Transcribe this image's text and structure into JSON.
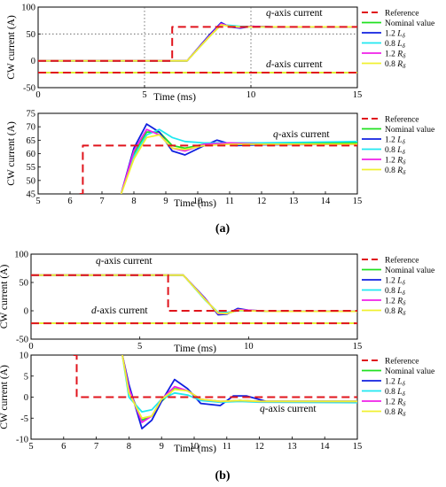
{
  "figure": {
    "sublabels": [
      "(a)",
      "(b)"
    ]
  },
  "style": {
    "colors": {
      "Reference": "#e0141c",
      "Nominal value": "#20e020",
      "1.2 Lδ": "#1020e0",
      "0.8 Lδ": "#20e8f0",
      "1.2 Rδ": "#f020e8",
      "0.8 Rδ": "#f0f030"
    }
  },
  "chart_data": [
    {
      "id": "a1",
      "type": "line",
      "ylabel": "CW current (A)",
      "xlabel": "Time (ms)",
      "xlim": [
        0,
        15
      ],
      "ylim": [
        -50,
        100
      ],
      "xticks": [
        0,
        5,
        10,
        15
      ],
      "yticks": [
        -50,
        0,
        50,
        100
      ],
      "grid": "dotted at x=5, x=10, y=50",
      "annotations": [
        "q-axis current",
        "d-axis current"
      ],
      "legend": [
        "Reference",
        "Nominal value",
        "1.2 Lδ",
        "0.8 Lδ",
        "1.2 Rδ",
        "0.8 Rδ"
      ],
      "series": [
        {
          "name": "Reference",
          "x": [
            0,
            6.3,
            6.3,
            15
          ],
          "y": [
            0,
            0,
            63,
            63
          ]
        },
        {
          "name": "Reference",
          "x": [
            0,
            15
          ],
          "y": [
            -22,
            -22
          ]
        },
        {
          "name": "Nominal value",
          "x": [
            0,
            6.4,
            7.0,
            8.0,
            8.6,
            9.0,
            9.5,
            10.0,
            11,
            15
          ],
          "y": [
            0,
            0,
            0,
            44,
            68,
            65,
            63,
            64,
            63,
            63
          ]
        },
        {
          "name": "1.2 Lδ",
          "x": [
            0,
            6.4,
            7.0,
            8.0,
            8.6,
            9.0,
            9.5,
            10.0,
            11,
            15
          ],
          "y": [
            0,
            0,
            0,
            46,
            71,
            63,
            61,
            64,
            63,
            63
          ]
        },
        {
          "name": "0.8 Lδ",
          "x": [
            0,
            6.4,
            7.0,
            8.0,
            8.6,
            9.0,
            9.5,
            10.0,
            11,
            15
          ],
          "y": [
            0,
            0,
            0,
            43,
            67,
            66,
            64,
            63,
            63,
            63
          ]
        },
        {
          "name": "1.2 Rδ",
          "x": [
            0,
            6.4,
            7.0,
            8.0,
            8.6,
            9.0,
            9.5,
            10.0,
            11,
            15
          ],
          "y": [
            0,
            0,
            0,
            44,
            69,
            64,
            62,
            64,
            63,
            63
          ]
        },
        {
          "name": "0.8 Rδ",
          "x": [
            0,
            6.4,
            7.0,
            8.0,
            8.6,
            9.0,
            9.5,
            10.0,
            11,
            15
          ],
          "y": [
            0,
            0,
            0,
            43,
            67,
            64,
            63,
            63,
            63,
            63
          ]
        },
        {
          "name": "Nominal value",
          "x": [
            0,
            15
          ],
          "y": [
            -22,
            -22
          ]
        },
        {
          "name": "0.8 Rδ",
          "x": [
            0,
            15
          ],
          "y": [
            -22,
            -22
          ]
        }
      ]
    },
    {
      "id": "a2",
      "type": "line",
      "ylabel": "CW current (A)",
      "xlabel": "Time (ms)",
      "xlim": [
        5,
        15
      ],
      "ylim": [
        45,
        75
      ],
      "xticks": [
        5,
        6,
        7,
        8,
        9,
        10,
        11,
        12,
        13,
        14,
        15
      ],
      "yticks": [
        45,
        50,
        55,
        60,
        65,
        70,
        75
      ],
      "annotations": [
        "q-axis current"
      ],
      "legend": [
        "Reference",
        "Nominal value",
        "1.2 Lδ",
        "0.8 Lδ",
        "1.2 Rδ",
        "0.8 Rδ"
      ],
      "series": [
        {
          "name": "Reference",
          "x": [
            6.3,
            6.3,
            6.4,
            6.4,
            15
          ],
          "y": [
            45,
            45,
            45,
            63,
            63
          ]
        },
        {
          "name": "Nominal value",
          "x": [
            7.6,
            8.0,
            8.4,
            8.8,
            9.2,
            9.6,
            10.2,
            11,
            12,
            15
          ],
          "y": [
            45,
            60,
            68,
            68,
            63,
            62,
            63.5,
            64,
            64,
            64
          ]
        },
        {
          "name": "1.2 Lδ",
          "x": [
            7.6,
            8.0,
            8.4,
            8.8,
            9.2,
            9.6,
            10.2,
            10.6,
            11.2,
            12,
            15
          ],
          "y": [
            45,
            62,
            71,
            68,
            61,
            59.5,
            63,
            65,
            63,
            63.3,
            63.5
          ]
        },
        {
          "name": "0.8 Lδ",
          "x": [
            7.6,
            8.0,
            8.4,
            8.8,
            9.2,
            9.6,
            10.2,
            11,
            12,
            15
          ],
          "y": [
            45,
            59,
            67,
            69,
            66,
            64.5,
            64,
            64,
            64,
            64.5
          ]
        },
        {
          "name": "1.2 Rδ",
          "x": [
            7.6,
            8.0,
            8.4,
            8.8,
            9.2,
            9.6,
            10.2,
            11,
            12,
            15
          ],
          "y": [
            45,
            61,
            69,
            67,
            62,
            61,
            63.5,
            64,
            63.5,
            63.5
          ]
        },
        {
          "name": "0.8 Rδ",
          "x": [
            7.6,
            8.0,
            8.4,
            8.8,
            9.2,
            9.6,
            10.2,
            11,
            12,
            15
          ],
          "y": [
            45,
            58,
            66,
            67,
            62,
            61.5,
            63,
            63.5,
            63.5,
            63.5
          ]
        }
      ]
    },
    {
      "id": "b1",
      "type": "line",
      "ylabel": "CW current (A)",
      "xlabel": "Time (ms)",
      "xlim": [
        0,
        15
      ],
      "ylim": [
        -50,
        100
      ],
      "xticks": [
        0,
        5,
        10,
        15
      ],
      "yticks": [
        -50,
        0,
        50,
        100
      ],
      "annotations": [
        "q-axis current",
        "d-axis current"
      ],
      "legend": [
        "Reference",
        "Nominal value",
        "1.2 Lδ",
        "0.8 Lδ",
        "1.2 Rδ",
        "0.8 Rδ"
      ],
      "series": [
        {
          "name": "Reference",
          "x": [
            0,
            6.3,
            6.3,
            15
          ],
          "y": [
            63,
            63,
            0,
            0
          ]
        },
        {
          "name": "Reference",
          "x": [
            0,
            15
          ],
          "y": [
            -22,
            -22
          ]
        },
        {
          "name": "Nominal value",
          "x": [
            0,
            6.4,
            7.0,
            8.0,
            8.6,
            9.0,
            9.5,
            10.0,
            11,
            15
          ],
          "y": [
            63,
            63,
            63,
            20,
            -4,
            -5,
            1,
            1,
            -1,
            -1
          ]
        },
        {
          "name": "1.2 Lδ",
          "x": [
            0,
            6.4,
            7.0,
            8.0,
            8.6,
            9.0,
            9.5,
            10.0,
            11,
            15
          ],
          "y": [
            63,
            63,
            63,
            22,
            -7,
            -6,
            4,
            1,
            -1,
            -1
          ]
        },
        {
          "name": "0.8 Lδ",
          "x": [
            0,
            6.4,
            7.0,
            8.0,
            8.6,
            9.0,
            9.5,
            10.0,
            11,
            15
          ],
          "y": [
            63,
            63,
            63,
            19,
            -3,
            -3,
            0,
            0,
            -1,
            -1
          ]
        },
        {
          "name": "1.2 Rδ",
          "x": [
            0,
            6.4,
            7.0,
            8.0,
            8.6,
            9.0,
            9.5,
            10.0,
            11,
            15
          ],
          "y": [
            63,
            63,
            63,
            21,
            -5,
            -5,
            2,
            1,
            -1,
            -1
          ]
        },
        {
          "name": "0.8 Rδ",
          "x": [
            0,
            6.4,
            7.0,
            8.0,
            8.6,
            9.0,
            9.5,
            10.0,
            11,
            15
          ],
          "y": [
            63,
            63,
            63,
            20,
            -4,
            -5,
            1,
            0,
            -1,
            -1
          ]
        },
        {
          "name": "Nominal value",
          "x": [
            0,
            15
          ],
          "y": [
            -22,
            -22
          ]
        },
        {
          "name": "0.8 Rδ",
          "x": [
            0,
            15
          ],
          "y": [
            -22,
            -22
          ]
        }
      ]
    },
    {
      "id": "b2",
      "type": "line",
      "ylabel": "CW current (A)",
      "xlabel": "Time (ms)",
      "xlim": [
        5,
        15
      ],
      "ylim": [
        -10,
        10
      ],
      "xticks": [
        5,
        6,
        7,
        8,
        9,
        10,
        11,
        12,
        13,
        14,
        15
      ],
      "yticks": [
        -10,
        -5,
        0,
        5,
        10
      ],
      "annotations": [
        "q-axis current"
      ],
      "legend": [
        "Reference",
        "Nominal value",
        "1.2 Lδ",
        "0.8 Lδ",
        "1.2 Rδ",
        "0.8 Rδ"
      ],
      "series": [
        {
          "name": "Reference",
          "x": [
            6.3,
            6.3,
            6.4,
            6.4,
            15
          ],
          "y": [
            10,
            10,
            10,
            0,
            0
          ]
        },
        {
          "name": "Nominal value",
          "x": [
            7.8,
            8.0,
            8.4,
            8.7,
            9.0,
            9.4,
            9.8,
            10.2,
            10.8,
            11.4,
            12,
            15
          ],
          "y": [
            10,
            2,
            -5.5,
            -4.5,
            -1,
            2,
            1.5,
            -0.5,
            -1.2,
            -0.8,
            -1,
            -1
          ]
        },
        {
          "name": "1.2 Lδ",
          "x": [
            7.8,
            8.0,
            8.4,
            8.7,
            9.0,
            9.4,
            9.8,
            10.2,
            10.8,
            11.2,
            11.6,
            12.2,
            15
          ],
          "y": [
            10,
            3,
            -7.5,
            -5.5,
            -1,
            4.2,
            2,
            -1.5,
            -2,
            0.3,
            0.3,
            -1,
            -1
          ]
        },
        {
          "name": "0.8 Lδ",
          "x": [
            7.8,
            8.0,
            8.4,
            8.7,
            9.0,
            9.4,
            9.8,
            10.2,
            10.8,
            11.4,
            12,
            15
          ],
          "y": [
            10,
            0,
            -3.5,
            -3,
            -0.5,
            1,
            0.5,
            -0.8,
            -1.2,
            -1,
            -1.2,
            -1.3
          ]
        },
        {
          "name": "1.2 Rδ",
          "x": [
            7.8,
            8.0,
            8.4,
            8.7,
            9.0,
            9.4,
            9.8,
            10.2,
            10.8,
            11.4,
            12,
            15
          ],
          "y": [
            10,
            2,
            -6,
            -4.5,
            -0.5,
            2.5,
            1.5,
            -0.5,
            -1,
            -0.8,
            -1,
            -1
          ]
        },
        {
          "name": "0.8 Rδ",
          "x": [
            7.8,
            8.0,
            8.4,
            8.7,
            9.0,
            9.4,
            9.8,
            10.2,
            10.8,
            11.4,
            12,
            15
          ],
          "y": [
            10,
            1,
            -5,
            -4.5,
            -0.5,
            1.8,
            1.5,
            -0.5,
            -1,
            -0.8,
            -1,
            -1
          ]
        }
      ]
    }
  ]
}
